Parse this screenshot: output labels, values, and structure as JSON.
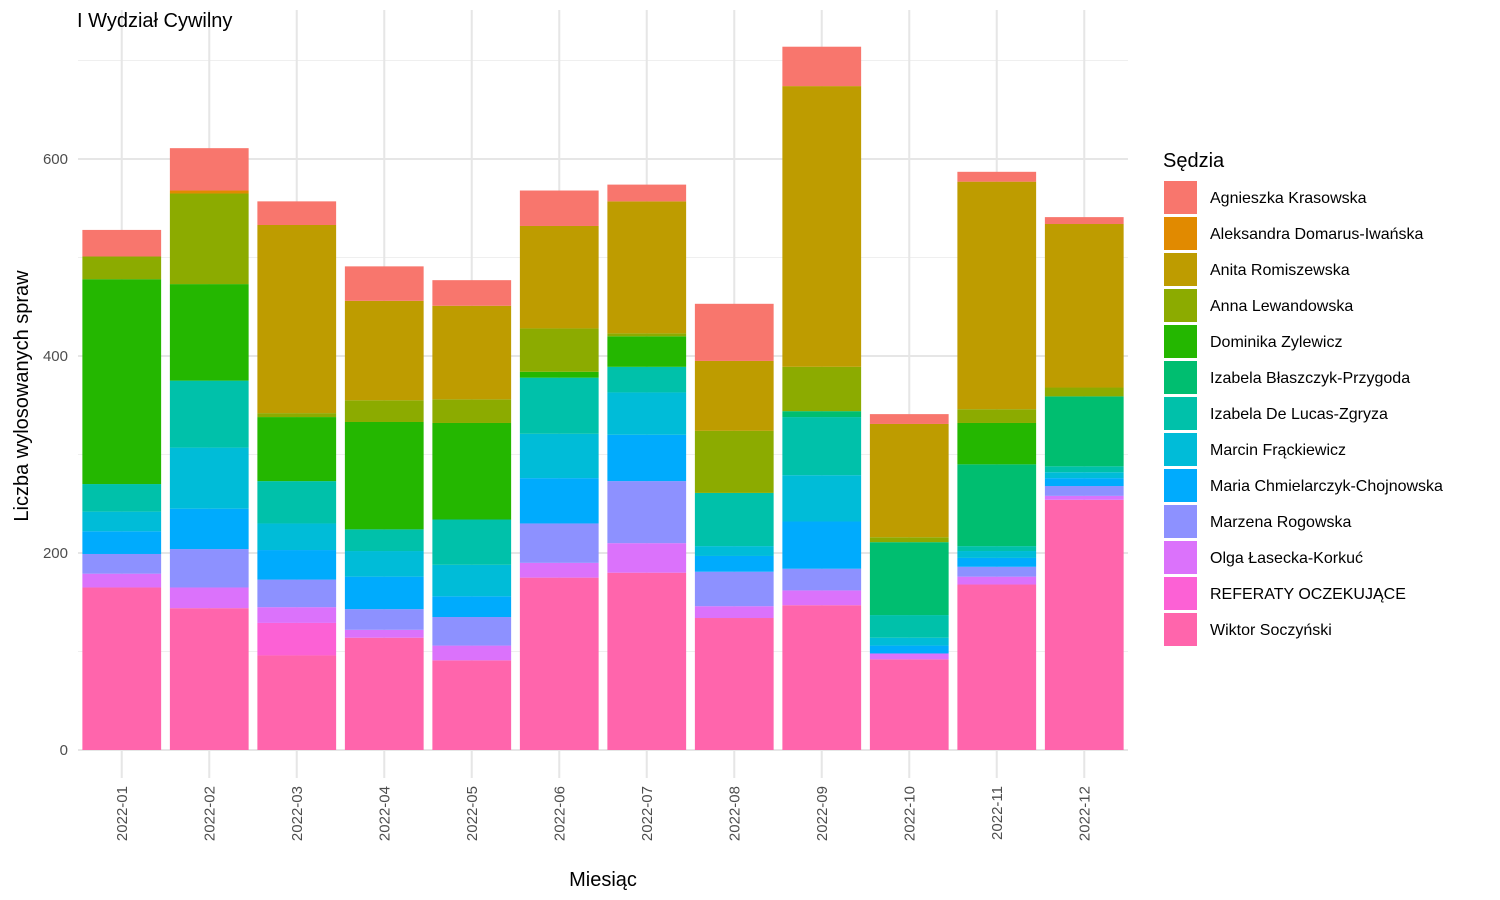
{
  "chart_data": {
    "type": "bar",
    "stacked": true,
    "title": "I Wydział Cywilny",
    "xlabel": "Miesiąc",
    "ylabel": "Liczba wylosowanych spraw",
    "ylim": [
      -28,
      725
    ],
    "yticks": [
      0,
      200,
      400,
      600
    ],
    "grid": true,
    "legend_title": "Sędzia",
    "legend_position": "right",
    "categories": [
      "2022-01",
      "2022-02",
      "2022-03",
      "2022-04",
      "2022-05",
      "2022-06",
      "2022-07",
      "2022-08",
      "2022-09",
      "2022-10",
      "2022-11",
      "2022-12"
    ],
    "series": [
      {
        "name": "Wiktor Soczyński",
        "color": "#FF65AC",
        "values": [
          165,
          144,
          96,
          114,
          91,
          175,
          180,
          134,
          147,
          92,
          168,
          254
        ]
      },
      {
        "name": "REFERATY OCZEKUJĄCE",
        "color": "#FC61D5",
        "values": [
          0,
          0,
          33,
          0,
          0,
          0,
          0,
          0,
          0,
          0,
          0,
          0
        ]
      },
      {
        "name": "Olga Łasecka-Korkuć",
        "color": "#DB72FB",
        "values": [
          14,
          21,
          16,
          8,
          15,
          15,
          30,
          12,
          15,
          6,
          8,
          4
        ]
      },
      {
        "name": "Marzena Rogowska",
        "color": "#8D91FF",
        "values": [
          20,
          39,
          28,
          21,
          29,
          40,
          63,
          35,
          22,
          0,
          10,
          10
        ]
      },
      {
        "name": "Maria Chmielarczyk-Chojnowska",
        "color": "#00ABFD",
        "values": [
          23,
          41,
          30,
          33,
          21,
          46,
          47,
          16,
          48,
          8,
          9,
          8
        ]
      },
      {
        "name": "Marcin Frąckiewicz",
        "color": "#00BCD8",
        "values": [
          20,
          62,
          27,
          26,
          32,
          45,
          43,
          10,
          47,
          8,
          7,
          6
        ]
      },
      {
        "name": "Izabela De Lucas-Zgryza",
        "color": "#00C1AA",
        "values": [
          28,
          68,
          43,
          22,
          46,
          57,
          26,
          54,
          59,
          23,
          5,
          6
        ]
      },
      {
        "name": "Izabela Błaszczyk-Przygoda",
        "color": "#00BE70",
        "values": [
          0,
          0,
          0,
          0,
          0,
          0,
          0,
          0,
          6,
          74,
          83,
          71
        ]
      },
      {
        "name": "Dominika Zylewicz",
        "color": "#24B700",
        "values": [
          208,
          98,
          65,
          109,
          98,
          6,
          31,
          0,
          0,
          0,
          42,
          0
        ]
      },
      {
        "name": "Anna Lewandowska",
        "color": "#8CAB00",
        "values": [
          23,
          92,
          4,
          22,
          24,
          44,
          3,
          63,
          45,
          5,
          14,
          9
        ]
      },
      {
        "name": "Anita Romiszewska",
        "color": "#BE9C00",
        "values": [
          0,
          0,
          191,
          101,
          95,
          104,
          134,
          71,
          285,
          115,
          231,
          166
        ]
      },
      {
        "name": "Aleksandra Domarus-Iwańska",
        "color": "#E18A00",
        "values": [
          0,
          3,
          0,
          0,
          0,
          0,
          0,
          0,
          0,
          0,
          0,
          0
        ]
      },
      {
        "name": "Agnieszka Krasowska",
        "color": "#F8766D",
        "values": [
          27,
          43,
          24,
          35,
          26,
          36,
          17,
          58,
          40,
          10,
          10,
          7
        ]
      }
    ],
    "legend_order": [
      "Agnieszka Krasowska",
      "Aleksandra Domarus-Iwańska",
      "Anita Romiszewska",
      "Anna Lewandowska",
      "Dominika Zylewicz",
      "Izabela Błaszczyk-Przygoda",
      "Izabela De Lucas-Zgryza",
      "Marcin Frąckiewicz",
      "Maria Chmielarczyk-Chojnowska",
      "Marzena Rogowska",
      "Olga Łasecka-Korkuć",
      "REFERATY OCZEKUJĄCE",
      "Wiktor Soczyński"
    ]
  }
}
